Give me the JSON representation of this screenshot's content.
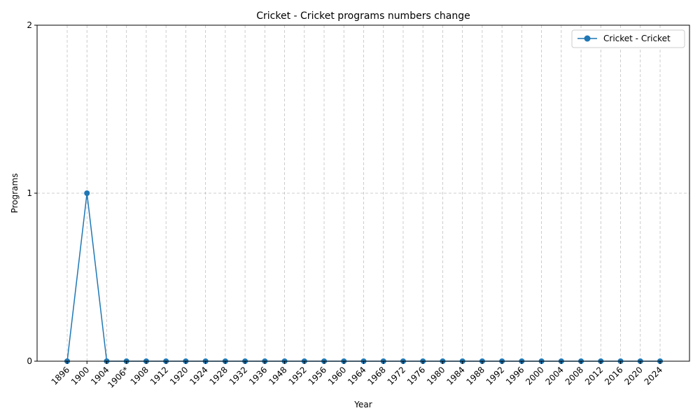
{
  "chart_data": {
    "type": "line",
    "title": "Cricket - Cricket programs numbers change",
    "xlabel": "Year",
    "ylabel": "Programs",
    "categories": [
      "1896",
      "1900",
      "1904",
      "1906*",
      "1908",
      "1912",
      "1920",
      "1924",
      "1928",
      "1932",
      "1936",
      "1948",
      "1952",
      "1956",
      "1960",
      "1964",
      "1968",
      "1972",
      "1976",
      "1980",
      "1984",
      "1988",
      "1992",
      "1996",
      "2000",
      "2004",
      "2008",
      "2012",
      "2016",
      "2020",
      "2024"
    ],
    "series": [
      {
        "name": "Cricket - Cricket",
        "values": [
          0,
          1,
          0,
          0,
          0,
          0,
          0,
          0,
          0,
          0,
          0,
          0,
          0,
          0,
          0,
          0,
          0,
          0,
          0,
          0,
          0,
          0,
          0,
          0,
          0,
          0,
          0,
          0,
          0,
          0,
          0
        ],
        "color": "#1f77b4",
        "marker": "circle"
      }
    ],
    "ylim": [
      0,
      2
    ],
    "yticks": [
      0,
      1,
      2
    ],
    "grid": true,
    "legend": "top-right"
  }
}
